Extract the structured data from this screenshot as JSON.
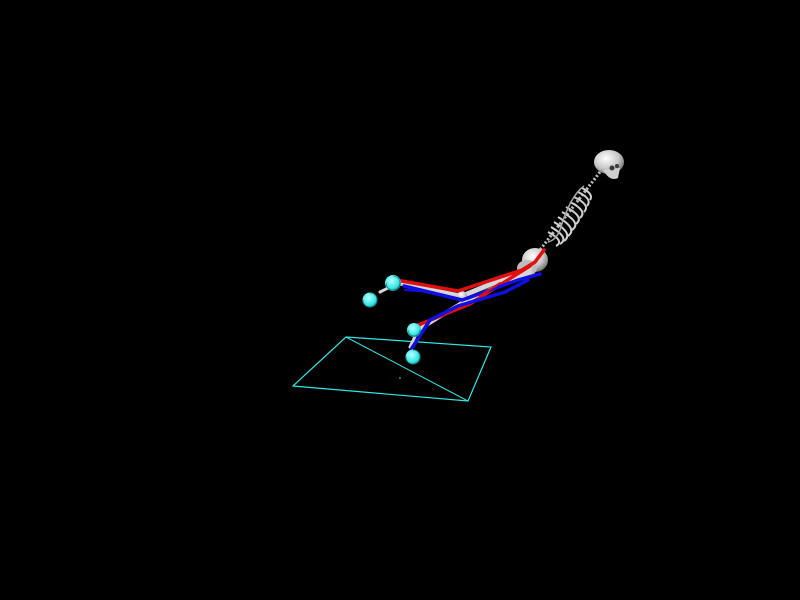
{
  "scene": {
    "background_color": "#000000",
    "marker_color": "#33e6e6",
    "force_plate_color": "#33e6e6",
    "muscle_colors": {
      "primary": "#e01010",
      "secondary": "#1010e0"
    },
    "bone_color": "#d8d8d8",
    "labels": {
      "skull": "skull-icon",
      "ribcage": "ribcage-icon",
      "pelvis": "pelvis-icon",
      "marker": "marker-sphere-icon",
      "force_plate": "force-plate-icon"
    }
  }
}
